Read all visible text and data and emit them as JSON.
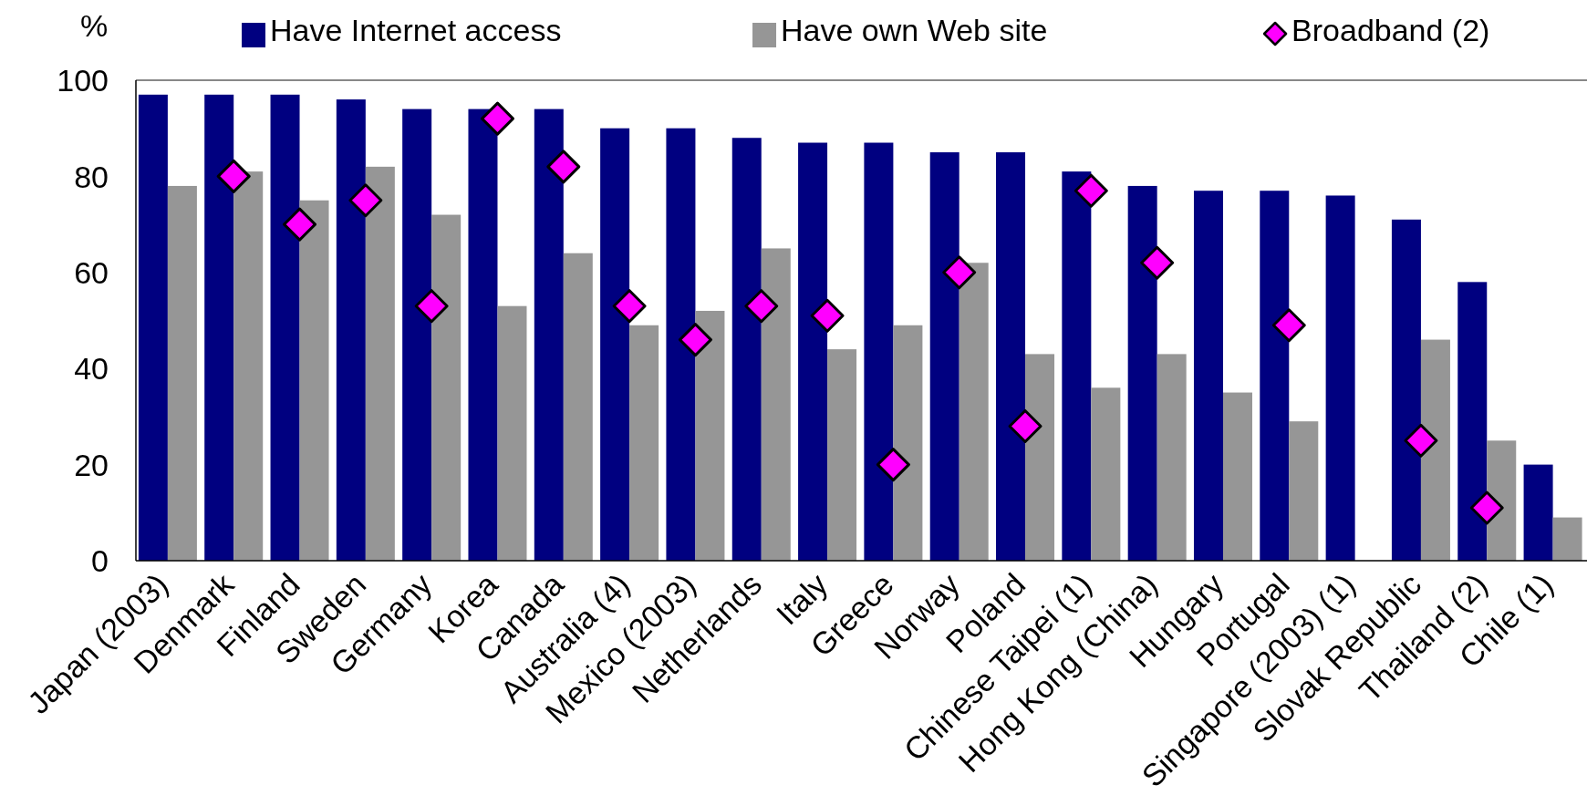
{
  "chart_data": {
    "type": "bar",
    "ylabel": "%",
    "categories": [
      "Japan (2003)",
      "Denmark",
      "Finland",
      "Sweden",
      "Germany",
      "Korea",
      "Canada",
      "Australia (4)",
      "Mexico (2003)",
      "Netherlands",
      "Italy",
      "Greece",
      "Norway",
      "Poland",
      "Chinese Taipei (1)",
      "Hong Kong (China)",
      "Hungary",
      "Portugal",
      "Singapore (2003) (1)",
      "Slovak Republic",
      "Thailand (2)",
      "Chile (1)"
    ],
    "series": [
      {
        "name": "Have Internet access",
        "color": "#000080",
        "values": [
          97,
          97,
          97,
          96,
          94,
          94,
          94,
          90,
          90,
          88,
          87,
          87,
          85,
          85,
          81,
          78,
          77,
          77,
          76,
          71,
          58,
          20
        ]
      },
      {
        "name": "Have own Web site",
        "color": "#969696",
        "values": [
          78,
          81,
          75,
          82,
          72,
          53,
          64,
          49,
          52,
          65,
          44,
          49,
          62,
          43,
          36,
          43,
          35,
          29,
          null,
          46,
          25,
          9
        ]
      },
      {
        "name": "Broadband (2)",
        "type": "scatter",
        "marker": "diamond",
        "color": "#ff00ff",
        "x": [
          "Denmark",
          "Finland",
          "Sweden",
          "Germany",
          "Korea",
          "Canada",
          "Australia (4)",
          "Mexico (2003)",
          "Netherlands",
          "Italy",
          "Greece",
          "Norway",
          "Poland",
          "Chinese Taipei (1)",
          "Hong Kong (China)",
          "Portugal",
          "Slovak Republic",
          "Thailand (2)"
        ],
        "values": [
          80,
          70,
          75,
          53,
          92,
          82,
          53,
          46,
          53,
          51,
          20,
          60,
          28,
          77,
          62,
          49,
          25,
          11
        ]
      }
    ],
    "ylim": [
      0,
      100
    ],
    "yticks": [
      0,
      20,
      40,
      60,
      80,
      100
    ],
    "legend": "top"
  }
}
